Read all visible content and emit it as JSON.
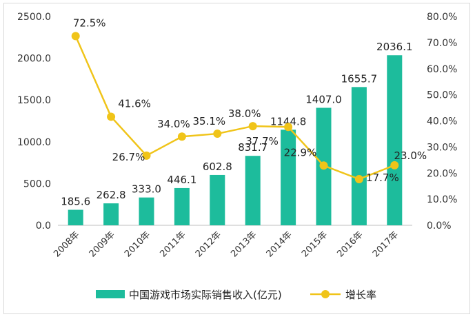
{
  "chart_data": {
    "type": "bar+line",
    "categories": [
      "2008年",
      "2009年",
      "2010年",
      "2011年",
      "2012年",
      "2013年",
      "2014年",
      "2015年",
      "2016年",
      "2017年"
    ],
    "series": [
      {
        "name": "中国游戏市场实际销售收入(亿元)",
        "type": "bar",
        "axis": "left",
        "color": "#1dbc9c",
        "values": [
          185.6,
          262.8,
          333.0,
          446.1,
          602.8,
          831.7,
          1144.8,
          1407.0,
          1655.7,
          2036.1
        ],
        "labels": [
          "185.6",
          "262.8",
          "333.0",
          "446.1",
          "602.8",
          "831.7",
          "1144.8",
          "1407.0",
          "1655.7",
          "2036.1"
        ]
      },
      {
        "name": "增长率",
        "type": "line",
        "axis": "right",
        "color": "#f0c419",
        "values": [
          72.5,
          41.6,
          26.7,
          34.0,
          35.1,
          38.0,
          37.7,
          22.9,
          17.7,
          23.0
        ],
        "labels": [
          "72.5%",
          "41.6%",
          "26.7%",
          "34.0%",
          "35.1%",
          "38.0%",
          "37.7%",
          "22.9%",
          "17.7%",
          "23.0%"
        ]
      }
    ],
    "y_left": {
      "min": 0,
      "max": 2500,
      "ticks": [
        "0.0",
        "500.0",
        "1000.0",
        "1500.0",
        "2000.0",
        "2500.0"
      ]
    },
    "y_right": {
      "min": 0,
      "max": 80,
      "ticks": [
        "0.0%",
        "10.0%",
        "20.0%",
        "30.0%",
        "40.0%",
        "50.0%",
        "60.0%",
        "70.0%",
        "80.0%"
      ]
    },
    "grid": false,
    "legend_position": "bottom"
  }
}
